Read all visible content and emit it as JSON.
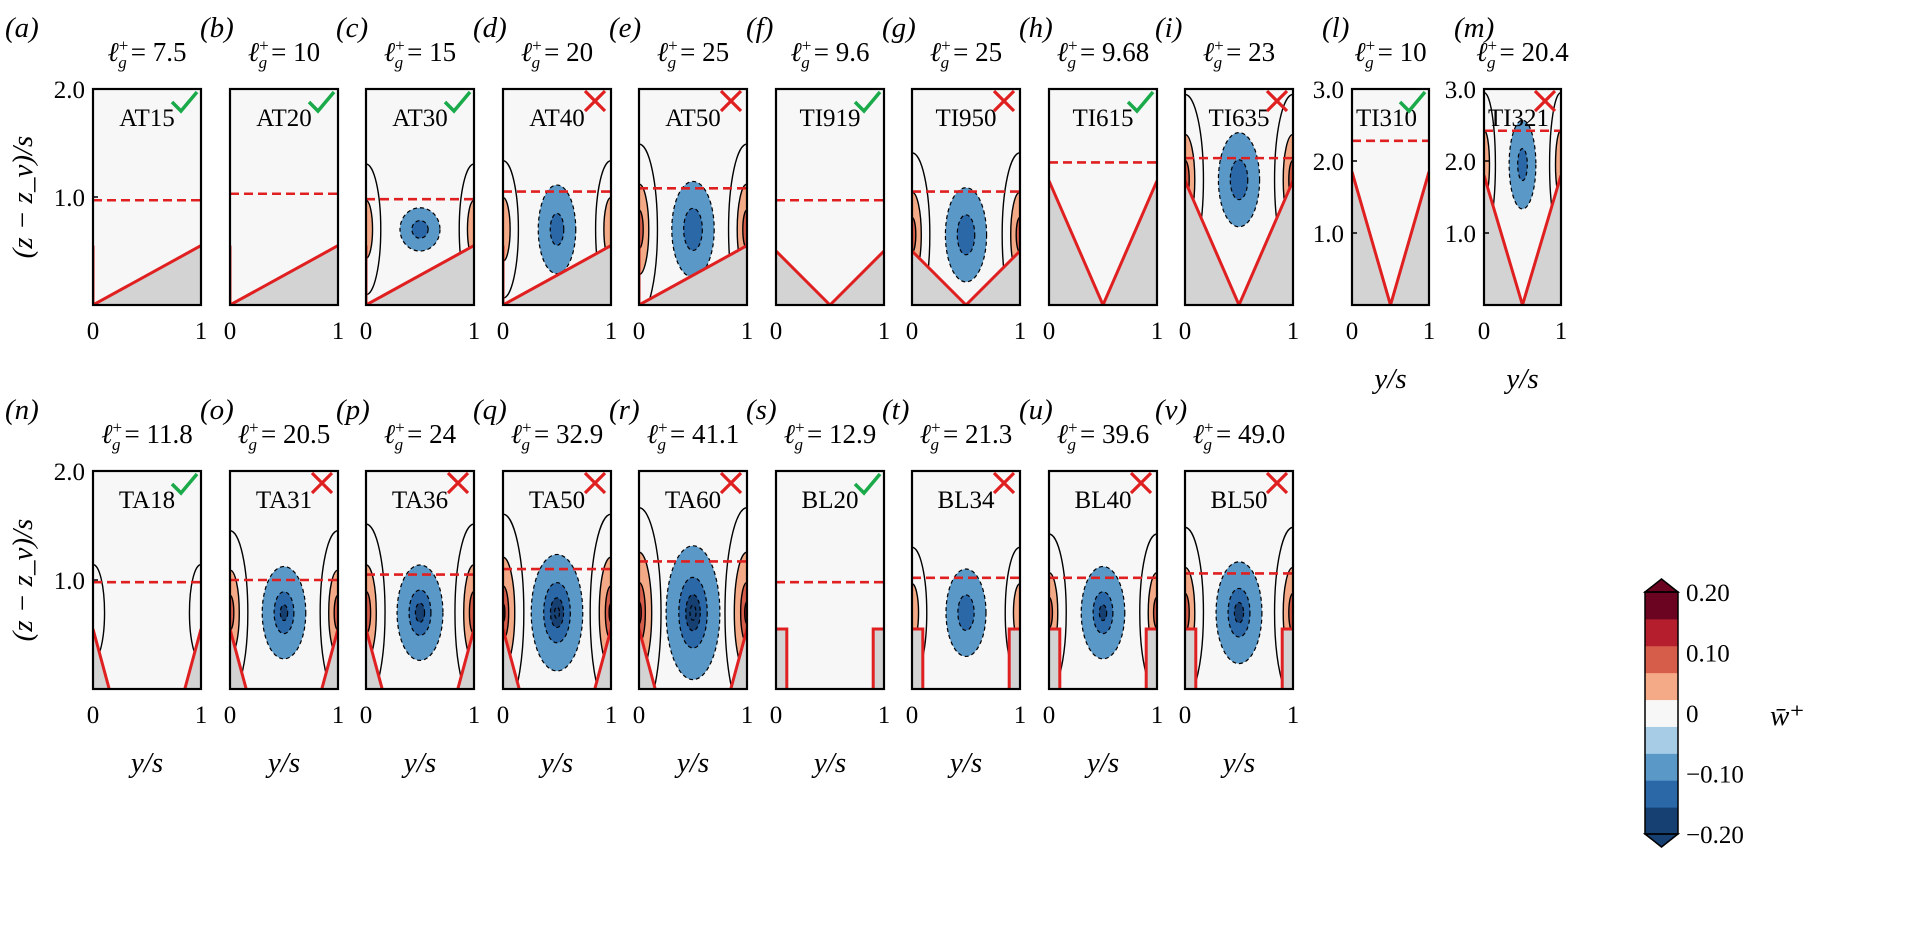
{
  "chart_data": {
    "type": "heatmap",
    "y_axis_label": "(z − z_v)/s",
    "x_axis_label": "y/s",
    "colorbar": {
      "label": "w̄⁺",
      "ticks": [
        "0.20",
        "0.10",
        "0",
        "−0.10",
        "−0.20"
      ],
      "range": [
        -0.2,
        0.2
      ],
      "levels": [
        -0.2,
        -0.15,
        -0.1,
        -0.05,
        0,
        0.05,
        0.1,
        0.15,
        0.2
      ],
      "colors": [
        "#163f72",
        "#2b68a8",
        "#5a98c8",
        "#a7cce5",
        "#f7f7f7",
        "#f4aa86",
        "#d75d4b",
        "#b51f2d",
        "#6a0420"
      ]
    },
    "colors": {
      "check": "#1aaa4a",
      "cross": "#e02020",
      "geometry": "#e02020",
      "solid": "#d3d3d3",
      "background": "#f7f7f7"
    },
    "panels": [
      {
        "label": "(a)",
        "title_value": "7.5",
        "case": "AT15",
        "status": "check",
        "zmax": 2,
        "yticks": [
          "2.0",
          "1.0"
        ],
        "interface": 0.97,
        "geom": "AT",
        "crest": 0.55,
        "side": 0,
        "center": 0,
        "center_h": 0.5,
        "xticks": [
          "0",
          "1"
        ],
        "show_xlabel": false
      },
      {
        "label": "(b)",
        "title_value": "10",
        "case": "AT20",
        "status": "check",
        "zmax": 2,
        "yticks": [],
        "interface": 1.03,
        "geom": "AT",
        "crest": 0.55,
        "side": 0,
        "center": 0,
        "center_h": 0.5,
        "xticks": [
          "0",
          "1"
        ],
        "show_xlabel": false
      },
      {
        "label": "(c)",
        "title_value": "15",
        "case": "AT30",
        "status": "check",
        "zmax": 2,
        "yticks": [],
        "interface": 0.98,
        "geom": "AT",
        "crest": 0.55,
        "side": 0.12,
        "center": 0.12,
        "center_h": 0.15,
        "xticks": [
          "0",
          "1"
        ],
        "show_xlabel": false
      },
      {
        "label": "(d)",
        "title_value": "20",
        "case": "AT40",
        "status": "cross",
        "zmax": 2,
        "yticks": [],
        "interface": 1.05,
        "geom": "AT",
        "crest": 0.55,
        "side": 0.13,
        "center": 0.1,
        "center_h": 0.32,
        "xticks": [
          "0",
          "1"
        ],
        "show_xlabel": false
      },
      {
        "label": "(e)",
        "title_value": "25",
        "case": "AT50",
        "status": "cross",
        "zmax": 2,
        "yticks": [],
        "interface": 1.08,
        "geom": "AT",
        "crest": 0.55,
        "side": 0.18,
        "center": 0.14,
        "center_h": 0.32,
        "xticks": [
          "0",
          "1"
        ],
        "show_xlabel": false
      },
      {
        "label": "(f)",
        "title_value": "9.6",
        "case": "TI919",
        "status": "check",
        "zmax": 2,
        "yticks": [],
        "interface": 0.97,
        "geom": "TI",
        "crest": 0.5,
        "side": 0,
        "center": 0,
        "center_h": 0.5,
        "xticks": [
          "0",
          "1"
        ],
        "show_xlabel": false
      },
      {
        "label": "(g)",
        "title_value": "25",
        "case": "TI950",
        "status": "cross",
        "zmax": 2,
        "yticks": [],
        "interface": 1.05,
        "geom": "TI",
        "crest": 0.5,
        "side": 0.17,
        "center": 0.13,
        "center_h": 0.32,
        "xticks": [
          "0",
          "1"
        ],
        "show_xlabel": false
      },
      {
        "label": "(h)",
        "title_value": "9.68",
        "case": "TI615",
        "status": "check",
        "zmax": 2,
        "yticks": [],
        "interface": 1.32,
        "geom": "TI",
        "crest": 1.15,
        "side": 0,
        "center": 0,
        "center_h": 0.5,
        "xticks": [
          "0",
          "1"
        ],
        "show_xlabel": false
      },
      {
        "label": "(i)",
        "title_value": "23",
        "case": "TI635",
        "status": "cross",
        "zmax": 2,
        "yticks": [],
        "interface": 1.36,
        "geom": "TI",
        "crest": 1.15,
        "side": 0.18,
        "center": 0.13,
        "center_h": 0.32,
        "xticks": [
          "0",
          "1"
        ],
        "show_xlabel": false
      },
      {
        "label": "(l)",
        "title_value": "10",
        "case": "TI310",
        "status": "check",
        "zmax": 3,
        "yticks": [
          "3.0",
          "2.0",
          "1.0"
        ],
        "interface": 2.28,
        "geom": "TI",
        "crest": 1.85,
        "side": 0,
        "center": 0,
        "center_h": 0.5,
        "xticks": [
          "0",
          "1"
        ],
        "show_xlabel": true
      },
      {
        "label": "(m)",
        "title_value": "20.4",
        "case": "TI321",
        "status": "cross",
        "zmax": 3,
        "yticks": [
          "3.0",
          "2.0",
          "1.0"
        ],
        "interface": 2.42,
        "geom": "TI",
        "crest": 1.8,
        "side": 0.14,
        "center": 0.1,
        "center_h": 0.32,
        "xticks": [
          "0",
          "1"
        ],
        "show_xlabel": true
      },
      {
        "label": "(n)",
        "title_value": "11.8",
        "case": "TA18",
        "status": "check",
        "zmax": 2,
        "yticks": [
          "2.0",
          "1.0"
        ],
        "interface": 0.98,
        "geom": "TA",
        "crest": 0.55,
        "side": 0.07,
        "center": 0,
        "center_h": 0.5,
        "xticks": [
          "0",
          "1"
        ],
        "show_xlabel": true
      },
      {
        "label": "(o)",
        "title_value": "20.5",
        "case": "TA31",
        "status": "cross",
        "zmax": 2,
        "yticks": [],
        "interface": 1.0,
        "geom": "TA",
        "crest": 0.55,
        "side": 0.17,
        "center": 0.15,
        "center_h": 0.3,
        "xticks": [
          "0",
          "1"
        ],
        "show_xlabel": true
      },
      {
        "label": "(p)",
        "title_value": "24",
        "case": "TA36",
        "status": "cross",
        "zmax": 2,
        "yticks": [],
        "interface": 1.05,
        "geom": "TA",
        "crest": 0.55,
        "side": 0.19,
        "center": 0.17,
        "center_h": 0.3,
        "xticks": [
          "0",
          "1"
        ],
        "show_xlabel": true
      },
      {
        "label": "(q)",
        "title_value": "32.9",
        "case": "TA50",
        "status": "cross",
        "zmax": 2,
        "yticks": [],
        "interface": 1.1,
        "geom": "TA",
        "crest": 0.55,
        "side": 0.22,
        "center": 0.22,
        "center_h": 0.34,
        "xticks": [
          "0",
          "1"
        ],
        "show_xlabel": true
      },
      {
        "label": "(r)",
        "title_value": "41.1",
        "case": "TA60",
        "status": "cross",
        "zmax": 2,
        "yticks": [],
        "interface": 1.17,
        "geom": "TA",
        "crest": 0.55,
        "side": 0.24,
        "center": 0.24,
        "center_h": 0.38,
        "xticks": [
          "0",
          "1"
        ],
        "show_xlabel": true
      },
      {
        "label": "(s)",
        "title_value": "12.9",
        "case": "BL20",
        "status": "check",
        "zmax": 2,
        "yticks": [],
        "interface": 0.98,
        "geom": "BL",
        "crest": 0.55,
        "side": 0,
        "center": 0,
        "center_h": 0.5,
        "xticks": [
          "0",
          "1"
        ],
        "show_xlabel": true
      },
      {
        "label": "(t)",
        "title_value": "21.3",
        "case": "BL34",
        "status": "cross",
        "zmax": 2,
        "yticks": [],
        "interface": 1.02,
        "geom": "BL",
        "crest": 0.55,
        "side": 0.12,
        "center": 0.12,
        "center_h": 0.3,
        "xticks": [
          "0",
          "1"
        ],
        "show_xlabel": true
      },
      {
        "label": "(u)",
        "title_value": "39.6",
        "case": "BL40",
        "status": "cross",
        "zmax": 2,
        "yticks": [],
        "interface": 1.02,
        "geom": "BL",
        "crest": 0.55,
        "side": 0.16,
        "center": 0.15,
        "center_h": 0.3,
        "xticks": [
          "0",
          "1"
        ],
        "show_xlabel": true
      },
      {
        "label": "(v)",
        "title_value": "49.0",
        "case": "BL50",
        "status": "cross",
        "zmax": 2,
        "yticks": [],
        "interface": 1.06,
        "geom": "BL",
        "crest": 0.55,
        "side": 0.18,
        "center": 0.17,
        "center_h": 0.32,
        "xticks": [
          "0",
          "1"
        ],
        "show_xlabel": true
      }
    ]
  }
}
